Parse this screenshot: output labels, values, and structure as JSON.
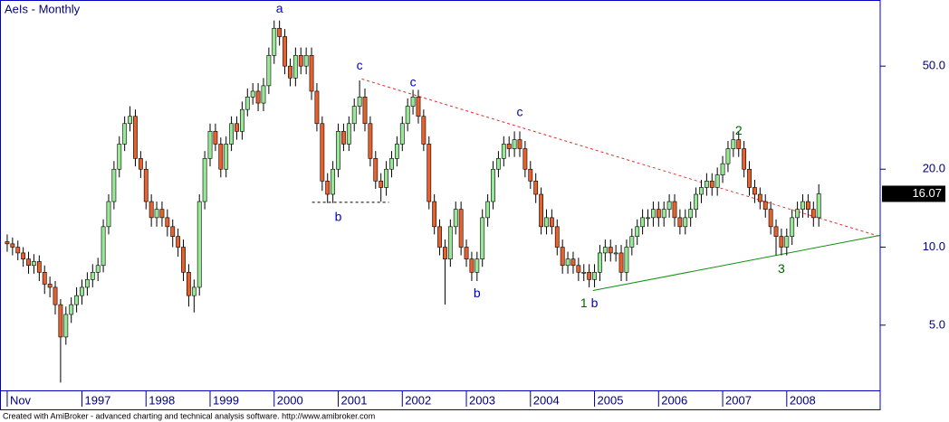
{
  "chart_data": {
    "type": "candlestick",
    "title": "AeIs - Monthly",
    "log_scale": true,
    "up_color": "#98e898",
    "down_color": "#e8602c",
    "ylim": [
      2.8,
      90
    ],
    "yticks": [
      {
        "value": 5,
        "label": "5.0"
      },
      {
        "value": 10,
        "label": "10.0"
      },
      {
        "value": 20,
        "label": "20.0"
      },
      {
        "value": 50,
        "label": "50.0"
      }
    ],
    "xlim": [
      -0.5,
      163.5
    ],
    "categories": [
      "Nov",
      null,
      null,
      null,
      null,
      null,
      null,
      null,
      null,
      null,
      null,
      null,
      null,
      null,
      "1997",
      null,
      null,
      null,
      null,
      null,
      null,
      null,
      null,
      null,
      null,
      null,
      "1998",
      null,
      null,
      null,
      null,
      null,
      null,
      null,
      null,
      null,
      null,
      null,
      "1999",
      null,
      null,
      null,
      null,
      null,
      null,
      null,
      null,
      null,
      null,
      null,
      "2000",
      null,
      null,
      null,
      null,
      null,
      null,
      null,
      null,
      null,
      null,
      null,
      "2001",
      null,
      null,
      null,
      null,
      null,
      null,
      null,
      null,
      null,
      null,
      null,
      "2002",
      null,
      null,
      null,
      null,
      null,
      null,
      null,
      null,
      null,
      null,
      null,
      "2003",
      null,
      null,
      null,
      null,
      null,
      null,
      null,
      null,
      null,
      null,
      null,
      "2004",
      null,
      null,
      null,
      null,
      null,
      null,
      null,
      null,
      null,
      null,
      null,
      "2005",
      null,
      null,
      null,
      null,
      null,
      null,
      null,
      null,
      null,
      null,
      null,
      "2006",
      null,
      null,
      null,
      null,
      null,
      null,
      null,
      null,
      null,
      null,
      null,
      "2007",
      null,
      null,
      null,
      null,
      null,
      null,
      null,
      null,
      null,
      null,
      null,
      "2008",
      null,
      null,
      null,
      null,
      null,
      null
    ],
    "open": [
      10.5,
      10.3,
      10,
      9.5,
      9,
      8.5,
      8.8,
      8,
      7.2,
      7,
      6,
      4.5,
      5.5,
      6,
      6.5,
      7,
      7.5,
      8,
      8.5,
      12,
      15,
      20,
      25,
      30,
      32,
      22,
      20,
      15,
      13,
      14,
      13,
      12,
      11,
      10,
      8,
      6.5,
      7,
      15,
      22,
      28,
      25,
      20,
      25,
      30,
      28,
      34,
      38,
      40,
      36,
      42,
      55,
      70,
      65,
      50,
      45,
      55,
      50,
      55,
      40,
      30,
      18,
      16,
      20,
      28,
      25,
      30,
      35,
      38,
      30,
      22,
      18,
      17,
      20,
      22,
      25,
      30,
      35,
      38,
      32,
      25,
      15,
      12,
      10,
      9,
      12,
      14,
      10,
      9,
      8,
      9,
      13,
      15,
      20,
      22,
      25,
      24,
      26,
      24,
      20,
      18,
      16,
      12,
      13,
      12,
      10,
      8.5,
      9,
      8.5,
      8,
      8,
      7.5,
      8,
      9.5,
      10,
      9.5,
      9.5,
      8,
      10,
      11,
      12,
      13,
      13,
      14,
      13,
      14,
      15,
      13,
      12,
      13,
      14,
      16,
      17,
      18,
      17,
      19,
      21,
      24,
      26,
      24,
      20,
      17,
      16,
      15,
      14,
      12,
      11,
      10,
      11,
      13,
      14,
      15,
      14,
      13
    ],
    "high": [
      11.2,
      10.9,
      10.6,
      10,
      9.6,
      9.4,
      9.3,
      8.5,
      7.7,
      7.4,
      6.3,
      5.9,
      6.4,
      7,
      7.5,
      8,
      8.6,
      9.1,
      12.8,
      16,
      21.5,
      26.8,
      32,
      35,
      34,
      23.5,
      21.5,
      16,
      15,
      15,
      14,
      12.8,
      11.8,
      10.7,
      8.6,
      7.5,
      16,
      23.5,
      30,
      30,
      26.5,
      26.8,
      32,
      32,
      36.5,
      41,
      43,
      43,
      45,
      59,
      75,
      75,
      69.5,
      53.5,
      59,
      59,
      59,
      59,
      43,
      32,
      19.3,
      21.5,
      30,
      30,
      32,
      37.5,
      44,
      41,
      32,
      23.5,
      19.3,
      21.5,
      23.5,
      26.8,
      32,
      37.5,
      40.5,
      40.5,
      34,
      26.8,
      16,
      12.8,
      10.7,
      12.8,
      15,
      15,
      10.7,
      9.6,
      9.6,
      14,
      16,
      21.5,
      23.5,
      26.8,
      26.8,
      28,
      28,
      25.7,
      21.5,
      19.3,
      17,
      14,
      14,
      12.8,
      10.7,
      9.6,
      9.6,
      9.1,
      8.6,
      8.6,
      8.6,
      10.2,
      10.7,
      10.7,
      10.2,
      10.2,
      10.7,
      11.8,
      12.8,
      14,
      14,
      15,
      15,
      15,
      16,
      16,
      14,
      14,
      15,
      17,
      18.2,
      19.3,
      19.3,
      20.3,
      22.5,
      25.7,
      28,
      28,
      25.7,
      21.5,
      18.2,
      17,
      16,
      15,
      12.8,
      11.8,
      11.8,
      14,
      15,
      16,
      16,
      15,
      17.5
    ],
    "low": [
      9.6,
      9.3,
      8.9,
      8.4,
      7.9,
      7.9,
      7.4,
      6.6,
      6.4,
      5.5,
      3,
      4.2,
      5.1,
      5.6,
      6,
      6.5,
      7,
      7.4,
      8,
      11.2,
      14,
      18.6,
      23.5,
      28,
      20.5,
      18.5,
      14,
      12,
      12,
      12,
      11,
      10,
      9.2,
      7.4,
      5.9,
      5.6,
      6.5,
      14,
      20.5,
      23.5,
      18.6,
      18.6,
      23.5,
      26,
      26,
      32,
      35.5,
      33.5,
      33.5,
      39,
      51,
      60,
      46.5,
      41.8,
      41.8,
      46.5,
      46.5,
      37,
      28,
      16.5,
      14.8,
      14.8,
      18.6,
      23.5,
      23.5,
      28,
      32.5,
      28,
      20.5,
      16.8,
      15,
      15.8,
      18.6,
      20.5,
      23.5,
      28,
      32.5,
      30,
      23.5,
      14,
      11.2,
      9.3,
      6,
      8.4,
      11.2,
      9.3,
      8.4,
      7.4,
      7.4,
      8.4,
      12,
      14,
      18.6,
      20.5,
      22.3,
      22.3,
      22.3,
      18.6,
      16.8,
      14.8,
      11.2,
      11.2,
      11.2,
      9.3,
      7.9,
      7.9,
      7.9,
      7.4,
      7.4,
      7,
      7,
      7.4,
      8.8,
      8.8,
      8.8,
      7.4,
      7.4,
      9.3,
      10.2,
      11.2,
      12,
      12,
      12,
      12,
      13,
      12,
      11.2,
      11.2,
      12,
      13,
      14.8,
      15.8,
      15.8,
      15.8,
      17.7,
      19.5,
      22.3,
      22.3,
      18.6,
      15.8,
      14.8,
      14,
      13,
      11.2,
      9.3,
      9.3,
      9.3,
      10.2,
      12,
      13,
      13,
      12,
      12
    ],
    "close": [
      10.3,
      10,
      9.5,
      9,
      8.5,
      8.8,
      8,
      7.2,
      7,
      6,
      4.5,
      5.5,
      6,
      6.5,
      7,
      7.5,
      8,
      8.5,
      12,
      15,
      20,
      25,
      30,
      32,
      22,
      20,
      15,
      13,
      14,
      13,
      12,
      11,
      10,
      8,
      6.5,
      7,
      15,
      22,
      28,
      25,
      20,
      25,
      30,
      28,
      34,
      38,
      40,
      36,
      42,
      55,
      70,
      65,
      50,
      45,
      55,
      50,
      55,
      40,
      30,
      18,
      16,
      20,
      28,
      25,
      30,
      35,
      38,
      30,
      22,
      18,
      17,
      20,
      22,
      25,
      30,
      35,
      38,
      32,
      25,
      15,
      12,
      10,
      9,
      12,
      14,
      10,
      9,
      8,
      9,
      13,
      15,
      20,
      22,
      25,
      24,
      26,
      24,
      20,
      18,
      16,
      12,
      13,
      12,
      10,
      8.5,
      9,
      8.5,
      8,
      8,
      7.5,
      8,
      9.5,
      10,
      9.5,
      9.5,
      8,
      10,
      11,
      12,
      13,
      13,
      14,
      13,
      14,
      15,
      13,
      12,
      13,
      14,
      16,
      17,
      18,
      17,
      19,
      21,
      24,
      26,
      24,
      20,
      17,
      16,
      15,
      14,
      12,
      11,
      10,
      11,
      13,
      14,
      15,
      14,
      13,
      16.07
    ],
    "annotations": [
      {
        "text": "a",
        "x": 51,
        "y": 83,
        "color": "#0000cc"
      },
      {
        "text": "c",
        "x": 66,
        "y": 50,
        "color": "#0000cc"
      },
      {
        "text": "c",
        "x": 76,
        "y": 43,
        "color": "#0000cc"
      },
      {
        "text": "c",
        "x": 96,
        "y": 33,
        "color": "#0000cc"
      },
      {
        "text": "b",
        "x": 62,
        "y": 13,
        "color": "#0000cc"
      },
      {
        "text": "b",
        "x": 88,
        "y": 6.6,
        "color": "#0000cc"
      },
      {
        "text": "1",
        "x": 108,
        "y": 6.05,
        "color": "#006400"
      },
      {
        "text": "b",
        "x": 110,
        "y": 6.05,
        "color": "#0000cc"
      },
      {
        "text": "2",
        "x": 137,
        "y": 28,
        "color": "#006400"
      },
      {
        "text": "3",
        "x": 145,
        "y": 8.2,
        "color": "#006400"
      }
    ],
    "lines": [
      {
        "x": [
          66.4,
          163.4
        ],
        "y": [
          44.6,
          11
        ],
        "color": "#e03030",
        "dash": true
      },
      {
        "x": [
          109.7,
          163.4
        ],
        "y": [
          6.8,
          11.1
        ],
        "color": "#109010",
        "dash": false
      },
      {
        "x": [
          57.1,
          71.5
        ],
        "y": [
          14.9,
          14.9
        ],
        "color": "#000000",
        "dash": true
      }
    ]
  },
  "footer": "Created with AmiBroker - advanced charting and technical analysis software. http://www.amibroker.com"
}
